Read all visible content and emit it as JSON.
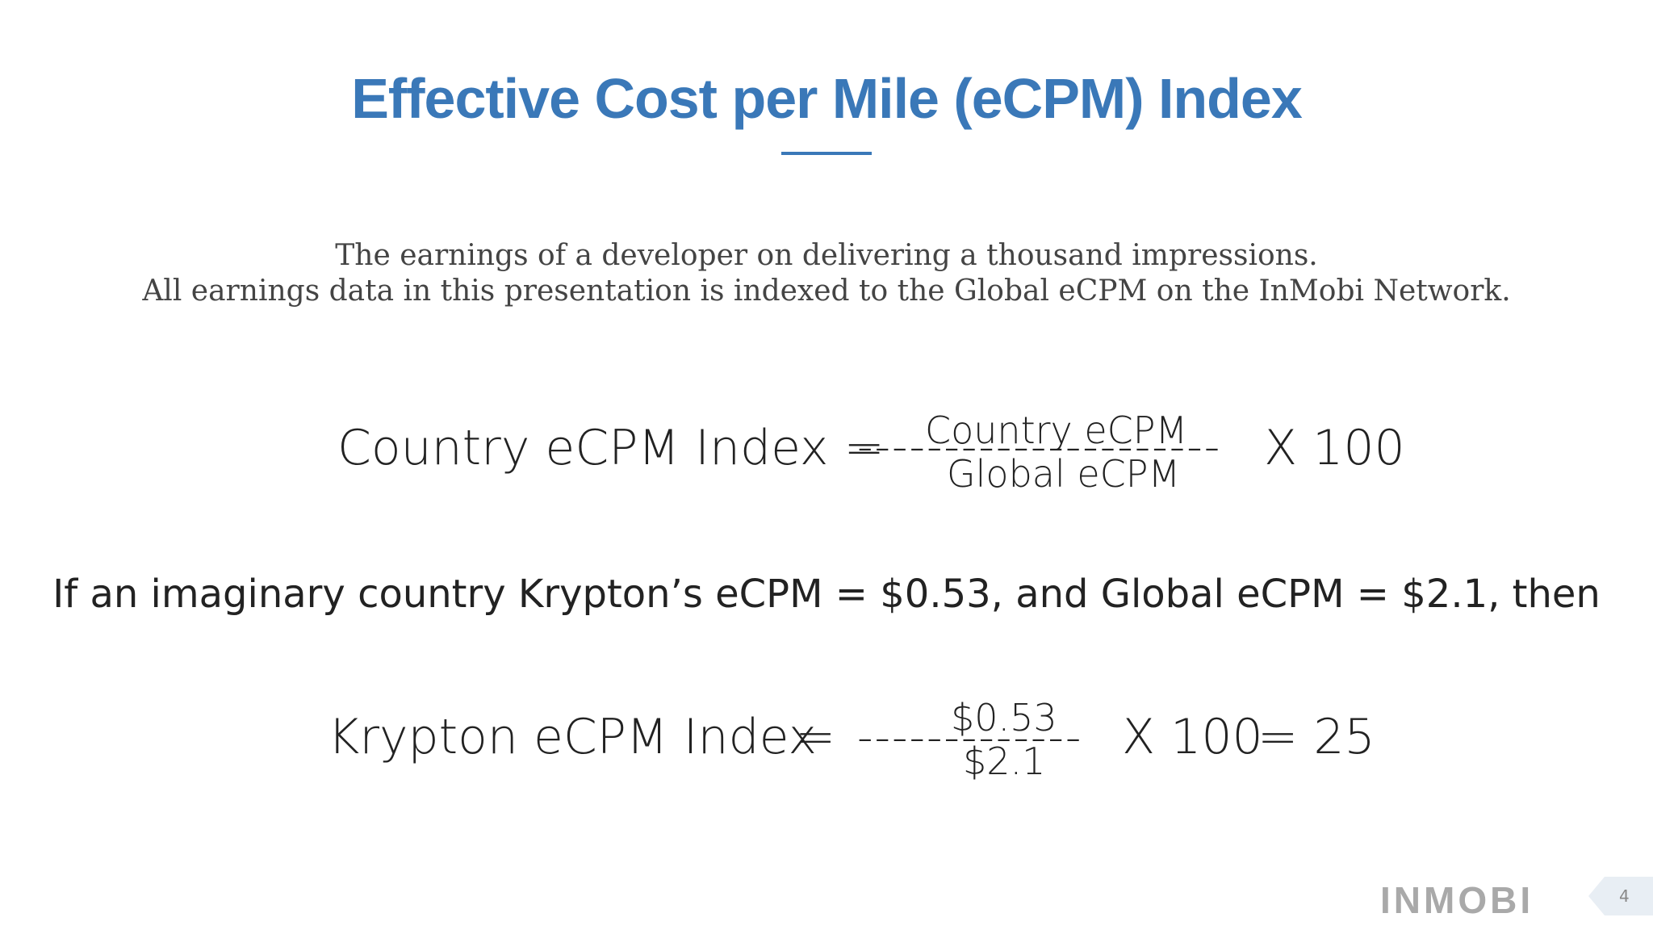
{
  "slide": {
    "title": "Effective Cost per Mile (eCPM) Index",
    "subtitle_line1": "The earnings of a developer on delivering a thousand impressions.",
    "subtitle_line2": "All earnings data in this presentation is indexed to the Global eCPM on the InMobi Network."
  },
  "formula": {
    "lhs": "Country eCPM Index =",
    "dashes": "---------------------",
    "numerator": "Country eCPM",
    "denominator": "Global eCPM",
    "multiplier": "X 100"
  },
  "example": {
    "text": "If an imaginary country Krypton’s eCPM = $0.53, and Global eCPM = $2.1, then"
  },
  "calculation": {
    "lhs": "Krypton eCPM Index",
    "equals": "=",
    "dashes": "-------------",
    "numerator": "$0.53",
    "denominator": "$2.1",
    "multiplier": "X 100",
    "result": "= 25"
  },
  "footer": {
    "logo_text": "INMOBI",
    "page_number": "4",
    "colors": {
      "title": "#3a78b8",
      "logo": "#a9a9a9",
      "tab": "#e8eef4"
    }
  }
}
